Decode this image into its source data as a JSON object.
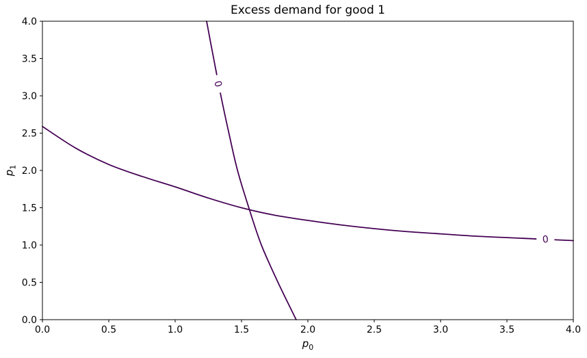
{
  "chart_data": {
    "type": "line",
    "variant": "contour-zero-level-set",
    "title": "Excess demand for good 1",
    "xlabel": {
      "base": "p",
      "sub": "0"
    },
    "ylabel": {
      "base": "p",
      "sub": "1"
    },
    "xlim": [
      0,
      4
    ],
    "ylim": [
      0,
      4
    ],
    "xticks": [
      "0.0",
      "0.5",
      "1.0",
      "1.5",
      "2.0",
      "2.5",
      "3.0",
      "3.5",
      "4.0"
    ],
    "yticks": [
      "0.0",
      "0.5",
      "1.0",
      "1.5",
      "2.0",
      "2.5",
      "3.0",
      "3.5",
      "4.0"
    ],
    "grid": false,
    "legend": null,
    "contour_level_label": "0",
    "line_color": "#440154",
    "axis_color": "#000000",
    "background_color": "#ffffff",
    "series": [
      {
        "name": "zero-contour-flat-branch",
        "label": "0",
        "label_pos": {
          "x": 3.79,
          "y": 1.08,
          "rotation_deg": -5
        },
        "points": [
          [
            0.0,
            2.59
          ],
          [
            0.25,
            2.3
          ],
          [
            0.5,
            2.08
          ],
          [
            0.75,
            1.92
          ],
          [
            1.0,
            1.78
          ],
          [
            1.25,
            1.63
          ],
          [
            1.5,
            1.5
          ],
          [
            1.75,
            1.4
          ],
          [
            2.0,
            1.33
          ],
          [
            2.25,
            1.27
          ],
          [
            2.5,
            1.22
          ],
          [
            2.75,
            1.18
          ],
          [
            3.0,
            1.15
          ],
          [
            3.25,
            1.12
          ],
          [
            3.5,
            1.1
          ],
          [
            3.75,
            1.08
          ],
          [
            4.0,
            1.06
          ]
        ]
      },
      {
        "name": "zero-contour-steep-branch",
        "label": "0",
        "label_pos": {
          "x": 1.325,
          "y": 3.16,
          "rotation_deg": 75
        },
        "points": [
          [
            1.237,
            4.0
          ],
          [
            1.29,
            3.5
          ],
          [
            1.345,
            3.0
          ],
          [
            1.405,
            2.5
          ],
          [
            1.47,
            2.0
          ],
          [
            1.555,
            1.5
          ],
          [
            1.65,
            1.0
          ],
          [
            1.775,
            0.5
          ],
          [
            1.912,
            0.0
          ]
        ]
      }
    ],
    "intersection_point": [
      1.57,
      1.46
    ]
  }
}
